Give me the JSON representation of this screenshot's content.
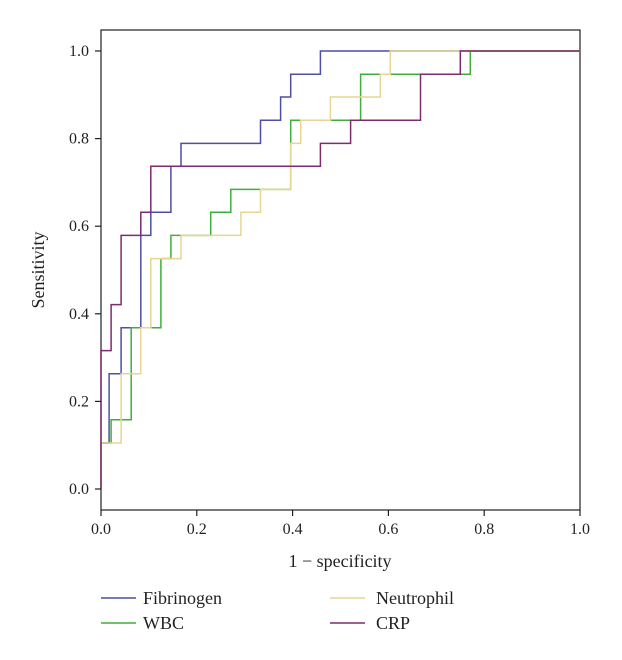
{
  "chart_data": {
    "type": "line",
    "title": "",
    "xlabel": "1 − specificity",
    "ylabel": "Sensitivity",
    "xlim": [
      0.0,
      1.0
    ],
    "ylim": [
      0.0,
      1.0
    ],
    "x_ticks": [
      "0.0",
      "0.2",
      "0.4",
      "0.6",
      "0.8",
      "1.0"
    ],
    "y_ticks": [
      "0.0",
      "0.2",
      "0.4",
      "0.6",
      "0.8",
      "1.0"
    ],
    "grid": false,
    "legend_position": "bottom",
    "series": [
      {
        "name": "Fibrinogen",
        "color": "#4b4fa6",
        "x": [
          0.0,
          0.0,
          0.017,
          0.017,
          0.042,
          0.042,
          0.083,
          0.083,
          0.104,
          0.104,
          0.146,
          0.146,
          0.167,
          0.167,
          0.333,
          0.333,
          0.375,
          0.375,
          0.396,
          0.396,
          0.438,
          0.438,
          0.458,
          0.458,
          0.479,
          0.479,
          1.0
        ],
        "y": [
          0.0,
          0.105,
          0.105,
          0.263,
          0.263,
          0.368,
          0.368,
          0.579,
          0.579,
          0.632,
          0.632,
          0.737,
          0.737,
          0.789,
          0.789,
          0.842,
          0.842,
          0.895,
          0.895,
          0.947,
          0.947,
          0.947,
          0.947,
          1.0,
          1.0,
          1.0,
          1.0
        ]
      },
      {
        "name": "WBC",
        "color": "#3fae3a",
        "x": [
          0.0,
          0.0,
          0.021,
          0.021,
          0.063,
          0.063,
          0.125,
          0.125,
          0.146,
          0.146,
          0.229,
          0.229,
          0.271,
          0.271,
          0.396,
          0.396,
          0.417,
          0.417,
          0.542,
          0.542,
          0.583,
          0.583,
          0.771,
          0.771,
          1.0
        ],
        "y": [
          0.0,
          0.105,
          0.105,
          0.158,
          0.158,
          0.368,
          0.368,
          0.526,
          0.526,
          0.579,
          0.579,
          0.632,
          0.632,
          0.684,
          0.684,
          0.842,
          0.842,
          0.842,
          0.842,
          0.947,
          0.947,
          0.947,
          0.947,
          1.0,
          1.0
        ]
      },
      {
        "name": "Neutrophil",
        "color": "#e8d591",
        "x": [
          0.0,
          0.0,
          0.042,
          0.042,
          0.063,
          0.063,
          0.083,
          0.083,
          0.104,
          0.104,
          0.146,
          0.146,
          0.167,
          0.167,
          0.292,
          0.292,
          0.333,
          0.333,
          0.396,
          0.396,
          0.417,
          0.417,
          0.438,
          0.438,
          0.479,
          0.479,
          0.583,
          0.583,
          0.604,
          0.604,
          1.0
        ],
        "y": [
          0.0,
          0.105,
          0.105,
          0.263,
          0.263,
          0.263,
          0.263,
          0.368,
          0.368,
          0.526,
          0.526,
          0.526,
          0.526,
          0.579,
          0.579,
          0.632,
          0.632,
          0.684,
          0.684,
          0.789,
          0.789,
          0.842,
          0.842,
          0.842,
          0.842,
          0.895,
          0.895,
          0.947,
          0.947,
          1.0,
          1.0
        ]
      },
      {
        "name": "CRP",
        "color": "#7d2b6f",
        "x": [
          0.0,
          0.0,
          0.021,
          0.021,
          0.042,
          0.042,
          0.083,
          0.083,
          0.104,
          0.104,
          0.458,
          0.458,
          0.521,
          0.521,
          0.542,
          0.542,
          0.667,
          0.667,
          0.75,
          0.75,
          1.0
        ],
        "y": [
          0.0,
          0.316,
          0.316,
          0.421,
          0.421,
          0.579,
          0.579,
          0.632,
          0.632,
          0.737,
          0.737,
          0.789,
          0.789,
          0.842,
          0.842,
          0.842,
          0.842,
          0.947,
          0.947,
          1.0,
          1.0
        ]
      }
    ]
  }
}
